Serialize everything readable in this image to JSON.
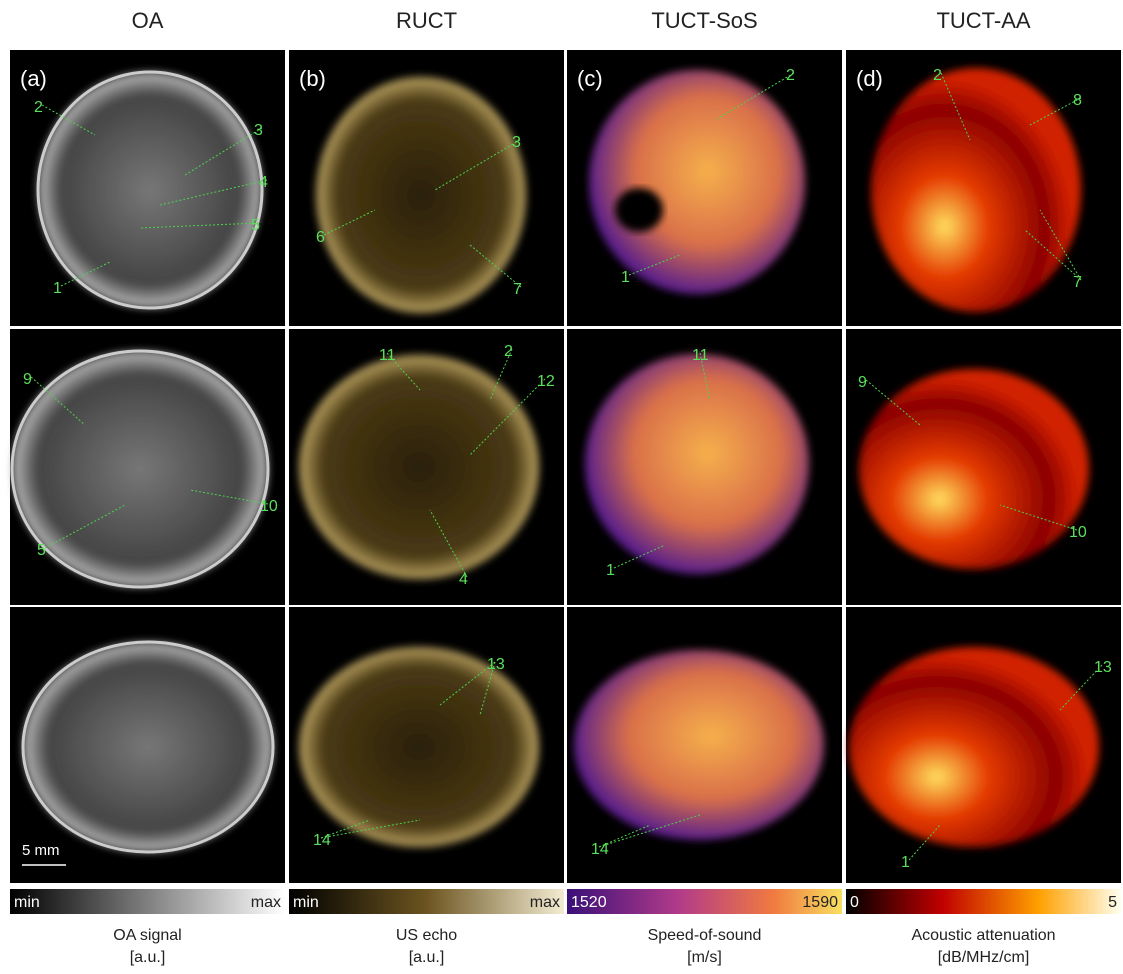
{
  "columns": [
    {
      "title": "OA",
      "colorbar_min": "min",
      "colorbar_max": "max",
      "caption_line1": "OA signal",
      "caption_line2": "[a.u.]"
    },
    {
      "title": "RUCT",
      "colorbar_min": "min",
      "colorbar_max": "max",
      "caption_line1": "US echo",
      "caption_line2": "[a.u.]"
    },
    {
      "title": "TUCT-SoS",
      "colorbar_min": "1520",
      "colorbar_max": "1590",
      "caption_line1": "Speed-of-sound",
      "caption_line2": "[m/s]"
    },
    {
      "title": "TUCT-AA",
      "colorbar_min": "0",
      "colorbar_max": "5",
      "caption_line1": "Acoustic attenuation",
      "caption_line2": "[dB/MHz/cm]"
    }
  ],
  "panels": [
    [
      {
        "label": "(a)",
        "annotations": [
          "2",
          "3",
          "4",
          "5",
          "1"
        ]
      },
      {
        "label": "(b)",
        "annotations": [
          "3",
          "6",
          "7"
        ]
      },
      {
        "label": "(c)",
        "annotations": [
          "2",
          "1"
        ]
      },
      {
        "label": "(d)",
        "annotations": [
          "2",
          "8",
          "7"
        ]
      }
    ],
    [
      {
        "annotations": [
          "9",
          "10",
          "5"
        ]
      },
      {
        "annotations": [
          "11",
          "2",
          "12",
          "4"
        ]
      },
      {
        "annotations": [
          "11",
          "1"
        ]
      },
      {
        "annotations": [
          "9",
          "10"
        ]
      }
    ],
    [
      {
        "annotations": [],
        "scale_bar": "5 mm"
      },
      {
        "annotations": [
          "13",
          "14"
        ]
      },
      {
        "annotations": [
          "14"
        ]
      },
      {
        "annotations": [
          "13",
          "1"
        ]
      }
    ]
  ]
}
